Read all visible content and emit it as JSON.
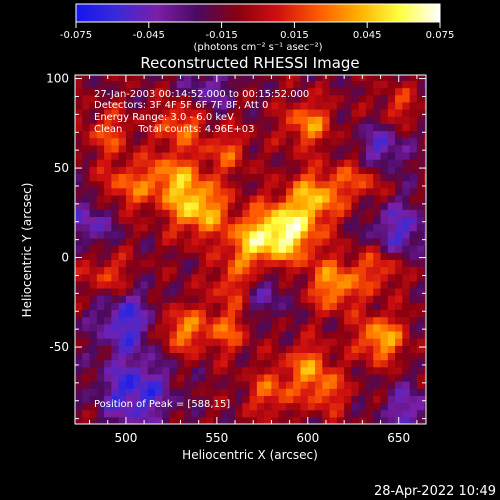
{
  "chart_data": {
    "type": "heatmap",
    "title": "Reconstructed RHESSI Image",
    "xlabel": "Heliocentric X (arcsec)",
    "ylabel": "Heliocentric Y (arcsec)",
    "xlim": [
      472,
      665
    ],
    "ylim": [
      -93,
      102
    ],
    "x_ticks": [
      500,
      550,
      600,
      650
    ],
    "y_ticks": [
      -50,
      0,
      50,
      100
    ],
    "colorbar": {
      "range": [
        -0.075,
        0.075
      ],
      "ticks": [
        "-0.075",
        "-0.045",
        "-0.015",
        "0.015",
        "0.045",
        "0.075"
      ],
      "unit_label": "(photons cm⁻² s⁻¹ asec⁻²)",
      "colors": [
        "#1515f0",
        "#3a2ad8",
        "#7a1fa8",
        "#4a0a60",
        "#8a0010",
        "#d01010",
        "#ff5a00",
        "#ffb000",
        "#ffff40",
        "#ffffff"
      ]
    },
    "annotations": [
      "27-Jan-2003 00:14:52.000 to 00:15:52.000",
      "Detectors: 3F 4F 5F 6F 7F 8F, Att 0",
      "Energy Range: 3.0 - 6.0 keV",
      "Clean     Total counts: 4.96E+03"
    ],
    "peak_label": "Position of Peak = [588,15]",
    "grid_step_arcsec": 4,
    "blobs": [
      {
        "x": 588,
        "y": 15,
        "amp": 0.075,
        "s": 12
      },
      {
        "x": 568,
        "y": 8,
        "amp": 0.045,
        "s": 10
      },
      {
        "x": 605,
        "y": 35,
        "amp": 0.05,
        "s": 10
      },
      {
        "x": 540,
        "y": 28,
        "amp": 0.06,
        "s": 11
      },
      {
        "x": 525,
        "y": 45,
        "amp": 0.045,
        "s": 10
      },
      {
        "x": 500,
        "y": 40,
        "amp": 0.035,
        "s": 10
      },
      {
        "x": 530,
        "y": 75,
        "amp": 0.04,
        "s": 9
      },
      {
        "x": 600,
        "y": 75,
        "amp": 0.045,
        "s": 9
      },
      {
        "x": 555,
        "y": 60,
        "amp": 0.03,
        "s": 9
      },
      {
        "x": 630,
        "y": 45,
        "amp": 0.035,
        "s": 9
      },
      {
        "x": 615,
        "y": -15,
        "amp": 0.05,
        "s": 10
      },
      {
        "x": 640,
        "y": -5,
        "amp": 0.035,
        "s": 9
      },
      {
        "x": 560,
        "y": -15,
        "amp": 0.035,
        "s": 9
      },
      {
        "x": 640,
        "y": -45,
        "amp": 0.055,
        "s": 9
      },
      {
        "x": 600,
        "y": -60,
        "amp": 0.04,
        "s": 9
      },
      {
        "x": 555,
        "y": -40,
        "amp": 0.035,
        "s": 9
      },
      {
        "x": 530,
        "y": -40,
        "amp": 0.045,
        "s": 9
      },
      {
        "x": 580,
        "y": -75,
        "amp": 0.035,
        "s": 9
      },
      {
        "x": 610,
        "y": -75,
        "amp": 0.035,
        "s": 8
      },
      {
        "x": 490,
        "y": -10,
        "amp": 0.03,
        "s": 9
      },
      {
        "x": 490,
        "y": 70,
        "amp": 0.03,
        "s": 9
      },
      {
        "x": 650,
        "y": 85,
        "amp": 0.025,
        "s": 8
      },
      {
        "x": 505,
        "y": -75,
        "amp": -0.05,
        "s": 14
      },
      {
        "x": 500,
        "y": -35,
        "amp": -0.045,
        "s": 12
      },
      {
        "x": 650,
        "y": 15,
        "amp": -0.04,
        "s": 12
      },
      {
        "x": 640,
        "y": 60,
        "amp": -0.04,
        "s": 10
      },
      {
        "x": 575,
        "y": -20,
        "amp": -0.03,
        "s": 10
      },
      {
        "x": 480,
        "y": 20,
        "amp": -0.035,
        "s": 10
      },
      {
        "x": 545,
        "y": 95,
        "amp": -0.03,
        "s": 10
      },
      {
        "x": 655,
        "y": -85,
        "amp": -0.035,
        "s": 10
      }
    ],
    "baseline": -0.012
  },
  "footer": {
    "timestamp": "28-Apr-2022 10:49"
  }
}
